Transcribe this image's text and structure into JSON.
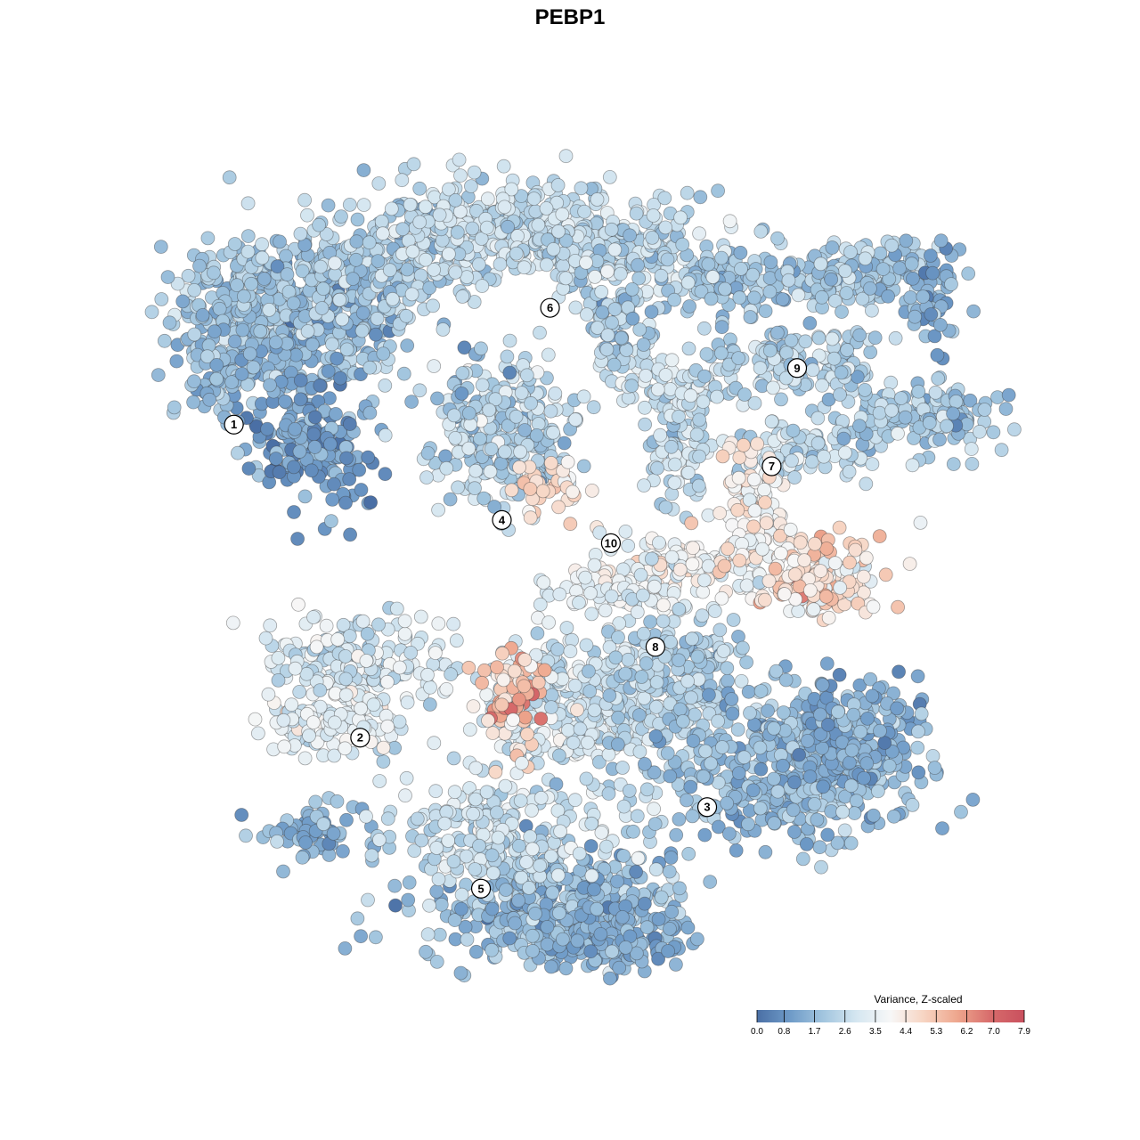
{
  "chart_data": {
    "type": "scatter",
    "title": "PEBP1",
    "xlabel": "",
    "ylabel": "",
    "xlim": [
      0,
      100
    ],
    "ylim": [
      0,
      100
    ],
    "grid": false,
    "legend": {
      "title": "Variance, Z-scaled",
      "placement": "bottom-right",
      "ticks": [
        "0.0",
        "0.8",
        "1.7",
        "2.6",
        "3.5",
        "4.4",
        "5.3",
        "6.2",
        "7.0",
        "7.9"
      ],
      "range": [
        0.0,
        7.9
      ],
      "colors": [
        "#4a6fa5",
        "#6f9bc8",
        "#a3c6df",
        "#d6e7f1",
        "#f7f7f7",
        "#f7d4c2",
        "#eea68d",
        "#d76b6b",
        "#c9505e"
      ]
    },
    "clusters": [
      {
        "label": "1",
        "x": 13.0,
        "y": 65.7
      },
      {
        "label": "2",
        "x": 26.9,
        "y": 31.9
      },
      {
        "label": "3",
        "x": 65.1,
        "y": 24.4
      },
      {
        "label": "4",
        "x": 42.5,
        "y": 55.4
      },
      {
        "label": "5",
        "x": 40.2,
        "y": 15.6
      },
      {
        "label": "6",
        "x": 47.8,
        "y": 78.3
      },
      {
        "label": "7",
        "x": 72.2,
        "y": 61.2
      },
      {
        "label": "8",
        "x": 59.4,
        "y": 41.7
      },
      {
        "label": "9",
        "x": 75.0,
        "y": 71.8
      },
      {
        "label": "10",
        "x": 54.5,
        "y": 52.9
      }
    ]
  }
}
